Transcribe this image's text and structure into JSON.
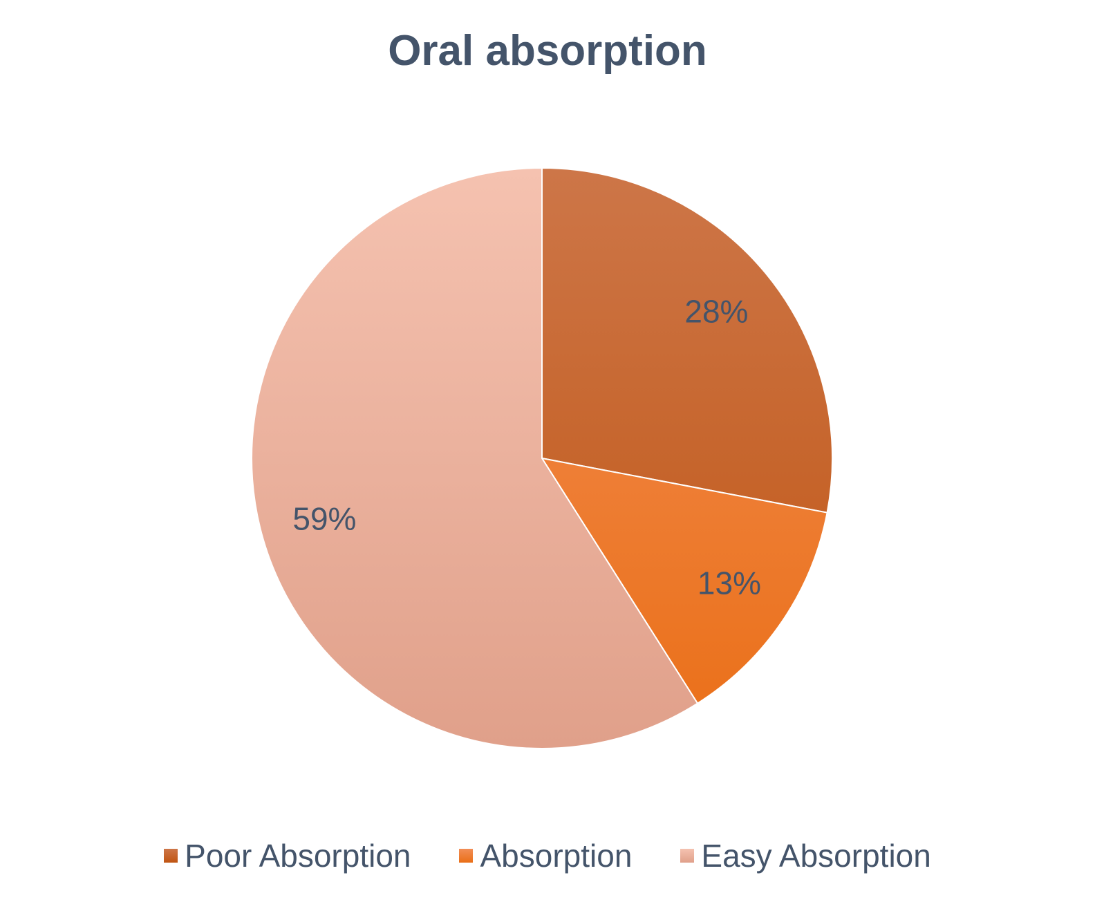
{
  "chart_data": {
    "type": "pie",
    "title": "Oral absorption",
    "start_angle": "12 o'clock, clockwise",
    "slices": [
      {
        "name": "Poor Absorption",
        "value": 28,
        "label": "28%",
        "color_top": "#cd7648",
        "color_bottom": "#c05512"
      },
      {
        "name": "Absorption",
        "value": 13,
        "label": "13%",
        "color_top": "#f28e56",
        "color_bottom": "#ea6f17"
      },
      {
        "name": "Easy Absorption",
        "value": 59,
        "label": "59%",
        "color_top": "#f5c2b0",
        "color_bottom": "#e0a08a"
      }
    ],
    "legend_position": "bottom",
    "label_color": "#44546a",
    "title_color": "#44546a"
  }
}
